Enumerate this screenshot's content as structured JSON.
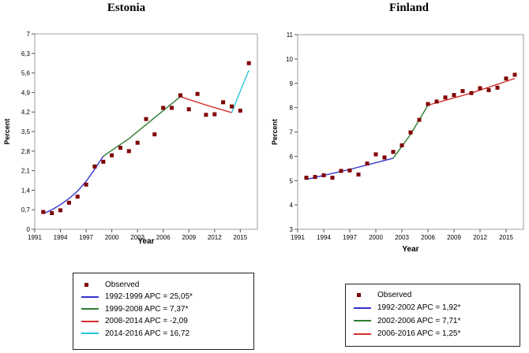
{
  "chart_data": [
    {
      "type": "line",
      "title": "Estonia",
      "xlabel": "Year",
      "ylabel": "Percent",
      "xlim": [
        1991,
        2017
      ],
      "ylim": [
        0,
        7
      ],
      "x_ticks": [
        1991,
        1994,
        1997,
        2000,
        2003,
        2006,
        2009,
        2012,
        2015
      ],
      "y_ticks": [
        0,
        0.7,
        1.4,
        2.1,
        2.8,
        3.5,
        4.2,
        4.9,
        5.6,
        6.3,
        7
      ],
      "y_tick_labels": [
        "0",
        "0,7",
        "1,4",
        "2,1",
        "2,8",
        "3,5",
        "4,2",
        "4,9",
        "5,6",
        "6,3",
        "7"
      ],
      "observed": {
        "name": "Observed",
        "color": "#800000",
        "x": [
          1992,
          1993,
          1994,
          1995,
          1996,
          1997,
          1998,
          1999,
          2000,
          2001,
          2002,
          2003,
          2004,
          2005,
          2006,
          2007,
          2008,
          2009,
          2010,
          2011,
          2012,
          2013,
          2014,
          2015,
          2016
        ],
        "y": [
          0.62,
          0.58,
          0.68,
          0.95,
          1.17,
          1.6,
          2.25,
          2.42,
          2.65,
          2.92,
          2.8,
          3.1,
          3.95,
          3.4,
          4.35,
          4.35,
          4.8,
          4.3,
          4.85,
          4.1,
          4.12,
          4.55,
          4.4,
          4.25,
          5.95
        ]
      },
      "series": [
        {
          "name": "1992-1999 APC = 25,05*",
          "color": "#3333cc",
          "x": [
            1992,
            1993,
            1994,
            1995,
            1996,
            1997,
            1998,
            1999
          ],
          "y": [
            0.56,
            0.7,
            0.88,
            1.1,
            1.37,
            1.72,
            2.15,
            2.62
          ]
        },
        {
          "name": "1999-2008 APC = 7,37*",
          "color": "#2e7d32",
          "x": [
            1999,
            2002,
            2005,
            2008
          ],
          "y": [
            2.62,
            3.25,
            4.0,
            4.75
          ]
        },
        {
          "name": "2008-2014 APC = -2,09",
          "color": "#d32f2f",
          "x": [
            2008,
            2011,
            2014
          ],
          "y": [
            4.75,
            4.45,
            4.18
          ]
        },
        {
          "name": "2014-2016 APC = 16,72",
          "color": "#26c6da",
          "x": [
            2014,
            2015,
            2016
          ],
          "y": [
            4.18,
            4.95,
            5.7
          ]
        }
      ]
    },
    {
      "type": "line",
      "title": "Finland",
      "xlabel": "Year",
      "ylabel": "Percent",
      "xlim": [
        1991,
        2017
      ],
      "ylim": [
        3,
        11
      ],
      "x_ticks": [
        1991,
        1994,
        1997,
        2000,
        2003,
        2006,
        2009,
        2012,
        2015
      ],
      "y_ticks": [
        3,
        4,
        5,
        6,
        7,
        8,
        9,
        10,
        11
      ],
      "y_tick_labels": [
        "3",
        "4",
        "5",
        "6",
        "7",
        "8",
        "9",
        "10",
        "11"
      ],
      "observed": {
        "name": "Observed",
        "color": "#800000",
        "x": [
          1992,
          1993,
          1994,
          1995,
          1996,
          1997,
          1998,
          1999,
          2000,
          2001,
          2002,
          2003,
          2004,
          2005,
          2006,
          2007,
          2008,
          2009,
          2010,
          2011,
          2012,
          2013,
          2014,
          2015,
          2016
        ],
        "y": [
          5.12,
          5.15,
          5.22,
          5.12,
          5.4,
          5.42,
          5.25,
          5.7,
          6.08,
          5.95,
          6.18,
          6.45,
          6.98,
          7.5,
          8.15,
          8.25,
          8.42,
          8.52,
          8.68,
          8.6,
          8.8,
          8.72,
          8.82,
          9.2,
          9.35
        ]
      },
      "series": [
        {
          "name": "1992-2002 APC = 1,92*",
          "color": "#3333cc",
          "x": [
            1992,
            1997,
            2002
          ],
          "y": [
            5.05,
            5.46,
            5.92
          ]
        },
        {
          "name": "2002-2006 APC = 7,71*",
          "color": "#2e7d32",
          "x": [
            2002,
            2004,
            2006
          ],
          "y": [
            5.92,
            6.9,
            8.1
          ]
        },
        {
          "name": "2006-2016 APC = 1,25*",
          "color": "#d32f2f",
          "x": [
            2006,
            2011,
            2016
          ],
          "y": [
            8.1,
            8.6,
            9.2
          ]
        }
      ]
    }
  ]
}
